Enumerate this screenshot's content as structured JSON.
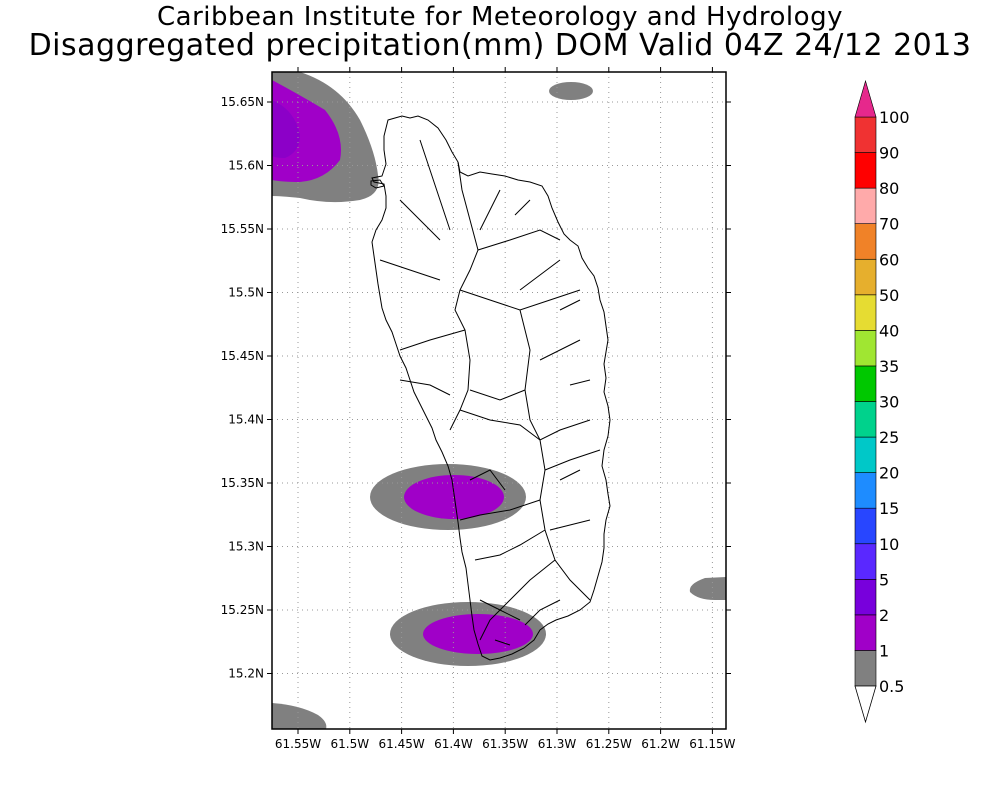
{
  "title_line1": "Caribbean Institute for Meteorology and Hydrology",
  "title_line2": "Disaggregated precipitation(mm) DOM Valid 04Z 24/12 2013",
  "lat_labels": [
    "15.65N",
    "15.6N",
    "15.55N",
    "15.5N",
    "15.45N",
    "15.4N",
    "15.35N",
    "15.3N",
    "15.25N",
    "15.2N"
  ],
  "lon_labels": [
    "61.55W",
    "61.5W",
    "61.45W",
    "61.4W",
    "61.35W",
    "61.3W",
    "61.25W",
    "61.2W",
    "61.15W"
  ],
  "colorbar": {
    "levels": [
      {
        "label": "0.5",
        "color": "#808080"
      },
      {
        "label": "1",
        "color": "#a000c8"
      },
      {
        "label": "2",
        "color": "#7800dc"
      },
      {
        "label": "5",
        "color": "#5a28ff"
      },
      {
        "label": "10",
        "color": "#2846ff"
      },
      {
        "label": "15",
        "color": "#1e8cff"
      },
      {
        "label": "20",
        "color": "#00c8c8"
      },
      {
        "label": "25",
        "color": "#00d28c"
      },
      {
        "label": "30",
        "color": "#00c800"
      },
      {
        "label": "35",
        "color": "#a0e632"
      },
      {
        "label": "40",
        "color": "#e6dc32"
      },
      {
        "label": "50",
        "color": "#e6af2d"
      },
      {
        "label": "60",
        "color": "#f08228"
      },
      {
        "label": "70",
        "color": "#ffaaaa"
      },
      {
        "label": "80",
        "color": "#ff0000"
      },
      {
        "label": "90",
        "color": "#f03232"
      },
      {
        "label": "100",
        "color": "#f04646"
      }
    ],
    "top_arrow_color": "#e6288c",
    "bottom_arrow_color": "#ffffff"
  },
  "colors": {
    "grey": "#808080",
    "purple": "#a000c8"
  }
}
